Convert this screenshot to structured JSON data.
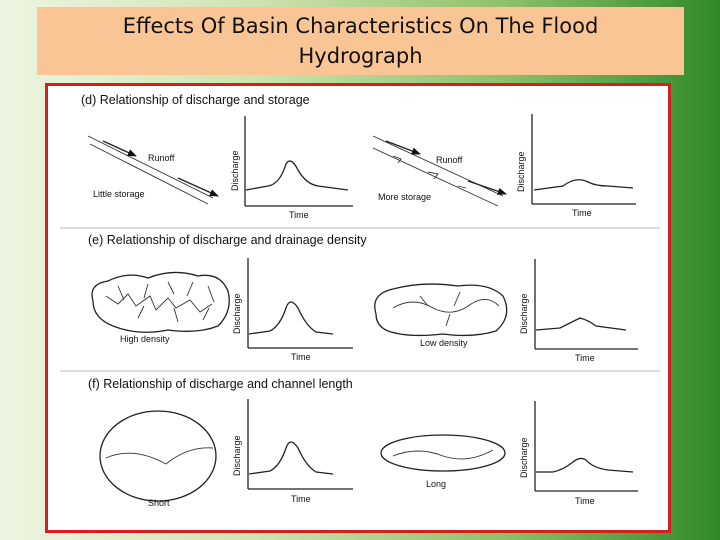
{
  "title": "Effects Of Basin Characteristics On The Flood Hydrograph",
  "sections": [
    {
      "heading": "(d) Relationship of discharge and storage",
      "left_label": "Little storage",
      "left_arrow_label": "Runoff",
      "right_label": "More storage",
      "right_arrow_label": "Runoff"
    },
    {
      "heading": "(e) Relationship of discharge and drainage density",
      "left_label": "High density",
      "right_label": "Low density"
    },
    {
      "heading": "(f) Relationship of discharge and channel length",
      "left_label": "Short",
      "right_label": "Long"
    }
  ],
  "axes": {
    "y_label": "Discharge",
    "x_label": "Time"
  },
  "colors": {
    "title_bg": "#f9c595",
    "frame": "#d41f1f"
  }
}
